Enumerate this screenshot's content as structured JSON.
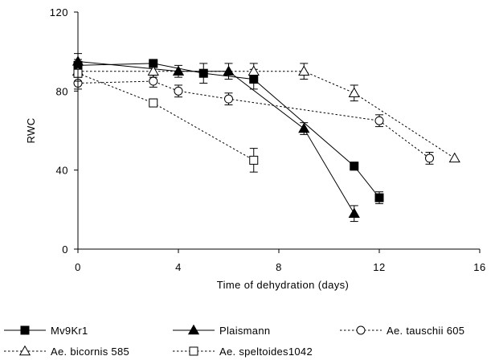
{
  "chart_data": {
    "type": "line",
    "title": "",
    "xlabel": "Time of dehydration (days)",
    "ylabel": "RWC",
    "xlim": [
      0,
      16
    ],
    "ylim": [
      0,
      120
    ],
    "xticks": [
      "0",
      "4",
      "8",
      "12",
      "16"
    ],
    "yticks": [
      "0",
      "40",
      "80",
      "120"
    ],
    "grid": false,
    "legend_position": "bottom",
    "series": [
      {
        "name": "Mv9Kr1",
        "marker": "square-filled",
        "line_style": "solid",
        "x": [
          0,
          3,
          5,
          7,
          11,
          12
        ],
        "y": [
          93,
          94,
          89,
          86,
          42,
          26
        ],
        "err": [
          3,
          2,
          5,
          5,
          2,
          3
        ]
      },
      {
        "name": "Plaismann",
        "marker": "triangle-filled",
        "line_style": "solid",
        "x": [
          0,
          4,
          6,
          9,
          11
        ],
        "y": [
          95,
          90,
          90,
          61,
          18
        ],
        "err": [
          4,
          3,
          4,
          3,
          4
        ]
      },
      {
        "name": "Ae. tauschii 605",
        "marker": "circle-open",
        "line_style": "dotted",
        "x": [
          0,
          3,
          4,
          6,
          12,
          14
        ],
        "y": [
          84,
          85,
          80,
          76,
          65,
          46
        ],
        "err": [
          3,
          3,
          3,
          3,
          3,
          3
        ]
      },
      {
        "name": "Ae. bicornis 585",
        "marker": "triangle-open",
        "line_style": "dotted",
        "x": [
          0,
          3,
          7,
          9,
          11,
          15
        ],
        "y": [
          90,
          90,
          90,
          90,
          79,
          46
        ],
        "err": [
          3,
          3,
          4,
          4,
          4,
          0
        ]
      },
      {
        "name": "Ae. speltoides1042",
        "marker": "square-open",
        "line_style": "dotted",
        "x": [
          0,
          3,
          7
        ],
        "y": [
          89,
          74,
          45
        ],
        "err": [
          4,
          2,
          6
        ]
      }
    ]
  }
}
